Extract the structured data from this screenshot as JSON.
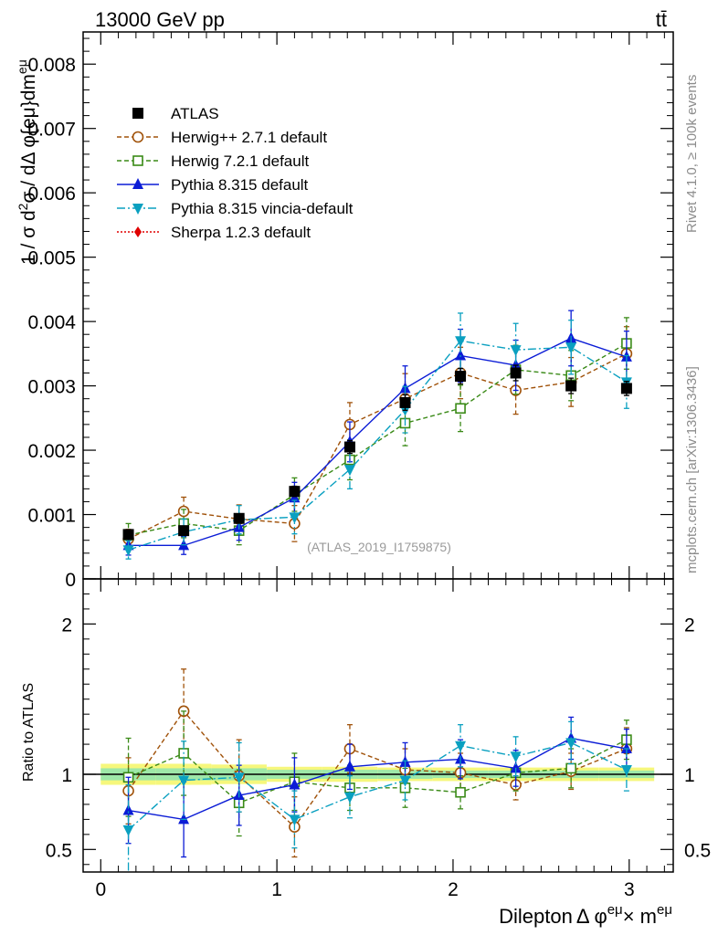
{
  "header": {
    "energy_label": "13000 GeV pp",
    "process_label": "tt̄",
    "rivet_label": "Rivet 4.1.0, ≥ 100k events",
    "mcplots_label": "mcplots.cern.ch [arXiv:1306.3436]",
    "analysis_label": "(ATLAS_2019_I1759875)"
  },
  "axes": {
    "main_ylabel": "1 / σ  d²σ / dΔ φ^{eμ}dm^{eμ}",
    "ratio_ylabel": "Ratio to ATLAS",
    "xlabel": "Dilepton Δ φ^{eμ} × m^{eμ}"
  },
  "chart_data": [
    {
      "type": "scatter",
      "panel": "main",
      "title": "",
      "xlim": [
        -0.1,
        3.25
      ],
      "ylim": [
        0,
        0.0085
      ],
      "x_ticks": [
        0,
        1,
        2,
        3
      ],
      "x_tick_labels": [
        "0",
        "1",
        "2",
        "3"
      ],
      "y_ticks": [
        0,
        0.001,
        0.002,
        0.003,
        0.004,
        0.005,
        0.006,
        0.007,
        0.008
      ],
      "y_tick_labels": [
        "0",
        "0.001",
        "0.002",
        "0.003",
        "0.004",
        "0.005",
        "0.006",
        "0.007",
        "0.008"
      ],
      "x": [
        0.157,
        0.471,
        0.785,
        1.1,
        1.414,
        1.728,
        2.042,
        2.356,
        2.67,
        2.985
      ],
      "legend_position": "top-left",
      "series": [
        {
          "name": "ATLAS",
          "color": "#000000",
          "marker": "square-filled",
          "line": "none",
          "values": [
            0.00069,
            0.00075,
            0.00094,
            0.00136,
            0.00205,
            0.00274,
            0.00315,
            0.0032,
            0.003,
            0.00296
          ],
          "errors": [
            5e-05,
            5e-05,
            6e-05,
            8e-05,
            0.0001,
            0.00012,
            0.00012,
            0.00012,
            0.00012,
            0.00011
          ]
        },
        {
          "name": "Herwig++ 2.7.1 default",
          "color": "#a0520a",
          "marker": "circle-open",
          "line": "dashed",
          "values": [
            0.00062,
            0.00105,
            0.00093,
            0.00086,
            0.0024,
            0.0028,
            0.0032,
            0.00293,
            0.00306,
            0.0035
          ],
          "errors": [
            0.00015,
            0.00022,
            0.00022,
            0.00028,
            0.00034,
            0.00039,
            0.0004,
            0.00037,
            0.00038,
            0.00042
          ]
        },
        {
          "name": "Herwig 7.2.1 default",
          "color": "#3a8a17",
          "marker": "square-open",
          "line": "dashed",
          "values": [
            0.00068,
            0.00086,
            0.00075,
            0.00131,
            0.00185,
            0.00242,
            0.00265,
            0.00325,
            0.00316,
            0.00366
          ],
          "errors": [
            0.00018,
            0.00022,
            0.00022,
            0.00026,
            0.00031,
            0.00035,
            0.00036,
            0.00038,
            0.00039,
            0.0004
          ]
        },
        {
          "name": "Pythia 8.315 default",
          "color": "#0b1cd6",
          "marker": "triangle-up",
          "line": "solid",
          "values": [
            0.00052,
            0.00052,
            0.0008,
            0.00126,
            0.00213,
            0.00296,
            0.00347,
            0.00332,
            0.00374,
            0.00345
          ],
          "errors": [
            0.00015,
            0.00014,
            0.0002,
            0.00024,
            0.00031,
            0.00035,
            0.00041,
            0.00039,
            0.00043,
            0.0004
          ]
        },
        {
          "name": "Pythia 8.315 vincia-default",
          "color": "#0aa0c0",
          "marker": "triangle-down",
          "line": "dashdot",
          "values": [
            0.00045,
            0.00073,
            0.00092,
            0.00096,
            0.0017,
            0.00263,
            0.0037,
            0.00356,
            0.0036,
            0.00306
          ],
          "errors": [
            0.00014,
            0.0002,
            0.00022,
            0.00026,
            0.0003,
            0.00036,
            0.00043,
            0.00041,
            0.00042,
            0.00041
          ]
        },
        {
          "name": "Sherpa 1.2.3 default",
          "color": "#e00000",
          "marker": "diamond",
          "line": "dotted",
          "values": [],
          "errors": []
        }
      ]
    },
    {
      "type": "scatter",
      "panel": "ratio",
      "ylabel": "Ratio to ATLAS",
      "xlabel": "Dilepton Δ φ^{eμ} × m^{eμ}",
      "xlim": [
        -0.1,
        3.25
      ],
      "ylim": [
        0.35,
        2.3
      ],
      "y_ticks": [
        0.5,
        1,
        2
      ],
      "y_tick_labels": [
        "0.5",
        "1",
        "2"
      ],
      "x": [
        0.157,
        0.471,
        0.785,
        1.1,
        1.414,
        1.728,
        2.042,
        2.356,
        2.67,
        2.985
      ],
      "band_inner": [
        0.04,
        0.04,
        0.04,
        0.03,
        0.03,
        0.03,
        0.025,
        0.025,
        0.025,
        0.025
      ],
      "band_outer": [
        0.07,
        0.07,
        0.065,
        0.05,
        0.05,
        0.045,
        0.045,
        0.045,
        0.045,
        0.045
      ],
      "series": [
        {
          "name": "Herwig++ 2.7.1 default",
          "color": "#a0520a",
          "marker": "circle-open",
          "line": "dashed",
          "values": [
            0.89,
            1.42,
            0.99,
            0.65,
            1.17,
            1.03,
            1.01,
            0.93,
            1.02,
            1.17
          ],
          "errors": [
            0.22,
            0.28,
            0.24,
            0.2,
            0.16,
            0.14,
            0.13,
            0.1,
            0.12,
            0.14
          ]
        },
        {
          "name": "Herwig 7.2.1 default",
          "color": "#3a8a17",
          "marker": "square-open",
          "line": "dashed",
          "values": [
            0.98,
            1.14,
            0.81,
            0.95,
            0.91,
            0.91,
            0.88,
            1.01,
            1.04,
            1.23
          ],
          "errors": [
            0.26,
            0.28,
            0.22,
            0.19,
            0.15,
            0.13,
            0.11,
            0.12,
            0.13,
            0.13
          ]
        },
        {
          "name": "Pythia 8.315 default",
          "color": "#0b1cd6",
          "marker": "triangle-up",
          "line": "solid",
          "values": [
            0.76,
            0.7,
            0.86,
            0.93,
            1.05,
            1.08,
            1.1,
            1.04,
            1.24,
            1.17
          ],
          "errors": [
            0.22,
            0.25,
            0.2,
            0.18,
            0.15,
            0.13,
            0.13,
            0.12,
            0.14,
            0.13
          ]
        },
        {
          "name": "Pythia 8.315 vincia-default",
          "color": "#0aa0c0",
          "marker": "triangle-down",
          "line": "dashdot",
          "values": [
            0.63,
            0.96,
            0.98,
            0.7,
            0.85,
            0.96,
            1.19,
            1.12,
            1.21,
            1.03
          ],
          "errors": [
            0.3,
            0.26,
            0.23,
            0.19,
            0.14,
            0.13,
            0.14,
            0.13,
            0.14,
            0.14
          ]
        }
      ]
    }
  ]
}
